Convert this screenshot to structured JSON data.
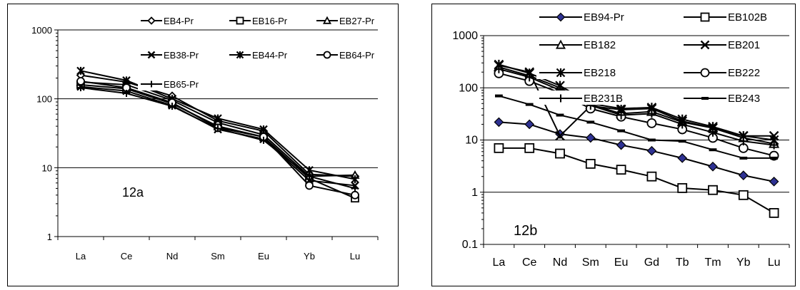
{
  "chart_data": [
    {
      "type": "line",
      "title": "",
      "xlabel": "",
      "ylabel": "",
      "panel_label": "12a",
      "yscale": "log",
      "ylim": [
        1,
        1000
      ],
      "ytick_labels": [
        "1",
        "10",
        "100",
        "1000"
      ],
      "grid": "horizontal major gridlines",
      "legend_placement": "top, overlapping plot area",
      "categories": [
        "La",
        "Ce",
        "Nd",
        "Sm",
        "Eu",
        "Yb",
        "Lu"
      ],
      "series": [
        {
          "name": "EB4-Pr",
          "marker": "diamond",
          "values": [
            220,
            175,
            110,
            48,
            34,
            8,
            7.5
          ]
        },
        {
          "name": "EB16-Pr",
          "marker": "square",
          "values": [
            160,
            140,
            85,
            40,
            28,
            7,
            3.6
          ]
        },
        {
          "name": "EB27-Pr",
          "marker": "triangle",
          "values": [
            175,
            160,
            95,
            45,
            30,
            7.5,
            7.8
          ]
        },
        {
          "name": "EB38-Pr",
          "marker": "x",
          "values": [
            150,
            130,
            80,
            36,
            26,
            6.5,
            5.5
          ]
        },
        {
          "name": "EB44-Pr",
          "marker": "star",
          "values": [
            255,
            185,
            100,
            52,
            36,
            9.2,
            6.8
          ]
        },
        {
          "name": "EB64-Pr",
          "marker": "circle",
          "values": [
            180,
            145,
            88,
            38,
            28,
            5.5,
            4.0
          ]
        },
        {
          "name": "EB65-Pr",
          "marker": "plus",
          "values": [
            145,
            120,
            78,
            37,
            25,
            7.5,
            5.0
          ]
        }
      ]
    },
    {
      "type": "line",
      "title": "",
      "xlabel": "",
      "ylabel": "",
      "panel_label": "12b",
      "yscale": "log",
      "ylim": [
        0.1,
        1000
      ],
      "ytick_labels": [
        "0.1",
        "1",
        "10",
        "100",
        "1000"
      ],
      "grid": "horizontal major gridlines",
      "legend_placement": "top, overlapping plot area",
      "categories": [
        "La",
        "Ce",
        "Nd",
        "Sm",
        "Eu",
        "Gd",
        "Tb",
        "Tm",
        "Yb",
        "Lu"
      ],
      "series": [
        {
          "name": "EB94-Pr",
          "marker": "diamond-filled",
          "values": [
            22,
            20,
            13,
            11,
            8,
            6.2,
            4.5,
            3.1,
            2.1,
            1.6
          ]
        },
        {
          "name": "EB102B",
          "marker": "square",
          "values": [
            7,
            7,
            5.5,
            3.5,
            2.7,
            2,
            1.2,
            1.1,
            0.88,
            0.4
          ]
        },
        {
          "name": "EB182",
          "marker": "triangle",
          "values": [
            250,
            170,
            100,
            48,
            32,
            35,
            22,
            17,
            11,
            8.5
          ]
        },
        {
          "name": "EB201",
          "marker": "x",
          "values": [
            270,
            200,
            12,
            45,
            38,
            40,
            23,
            17,
            12,
            12
          ]
        },
        {
          "name": "EB218",
          "marker": "star",
          "values": [
            280,
            190,
            110,
            50,
            40,
            42,
            25,
            18,
            12,
            10
          ]
        },
        {
          "name": "EB222",
          "marker": "circle",
          "values": [
            190,
            135,
            80,
            40,
            28,
            21,
            16,
            11,
            7,
            5
          ]
        },
        {
          "name": "EB231B",
          "marker": "plus",
          "values": [
            230,
            160,
            90,
            46,
            30,
            32,
            20,
            14,
            9.5,
            8
          ]
        },
        {
          "name": "EB243",
          "marker": "dash",
          "values": [
            70,
            48,
            30,
            22,
            15,
            10,
            9.5,
            6.5,
            4.5,
            4.5
          ]
        }
      ]
    }
  ]
}
